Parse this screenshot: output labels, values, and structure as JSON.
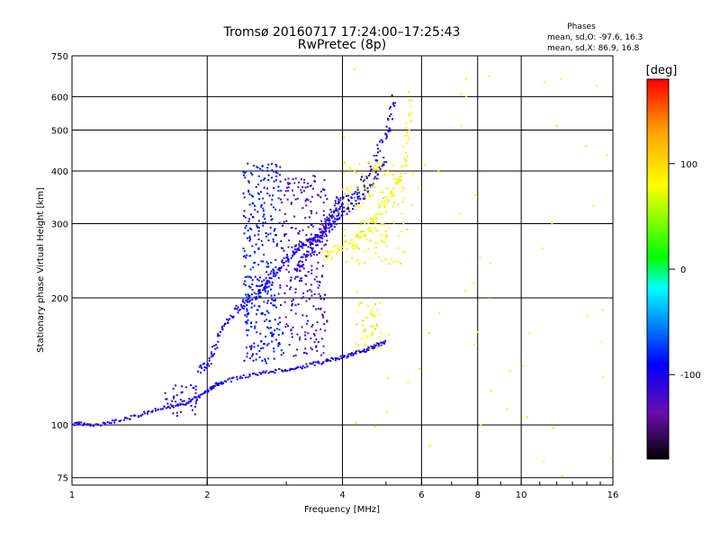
{
  "title": "Tromsø 20160717 17:24:00–17:25:43",
  "subtitle": "RwPretec (8p)",
  "phase_info": {
    "heading": "Phases",
    "line_o": "mean, sd,O: -97.6, 16.3",
    "line_x": "mean, sd,X:  86.9, 16.8"
  },
  "chart_data": {
    "type": "scatter",
    "xlabel": "Frequency [MHz]",
    "ylabel": "Stationary phase Virtual Height [km]",
    "xscale": "log",
    "yscale": "log",
    "xlim": [
      1,
      16
    ],
    "ylim": [
      72,
      750
    ],
    "x_ticks": [
      1,
      2,
      4,
      6,
      8,
      10,
      16
    ],
    "y_ticks": [
      75,
      100,
      200,
      300,
      400,
      500,
      600,
      750
    ],
    "grid": true,
    "colorbar": {
      "label": "[deg]",
      "range": [
        -180,
        180
      ],
      "ticks": [
        100,
        0,
        -100
      ],
      "colors": [
        "#ff0000",
        "#ffa500",
        "#ffff00",
        "#00ff00",
        "#00ffff",
        "#0000ff",
        "#6a0dad",
        "#000000"
      ]
    },
    "series": [
      {
        "kind": "curve",
        "phase": -100,
        "x": [
          1.0,
          1.05,
          1.1,
          1.2,
          1.3,
          1.4,
          1.5,
          1.6,
          1.7,
          1.8,
          1.9,
          2.0,
          2.05,
          2.1,
          2.2,
          2.4,
          2.6,
          2.8,
          3.0,
          3.2,
          3.4,
          3.6,
          3.8,
          4.0,
          4.2,
          4.4,
          4.6,
          4.8,
          5.0
        ],
        "y": [
          100,
          101,
          100,
          101,
          103,
          105,
          108,
          110,
          111,
          113,
          116,
          120,
          123,
          125,
          127,
          130,
          132,
          134,
          135,
          137,
          139,
          141,
          143,
          145,
          147,
          149,
          152,
          155,
          158
        ],
        "jitter": 0.01
      },
      {
        "kind": "curve",
        "phase": -100,
        "x": [
          1.9,
          2.0,
          2.05,
          2.1,
          2.2,
          2.3,
          2.4,
          2.5,
          2.6,
          2.7,
          2.8
        ],
        "y": [
          135,
          138,
          145,
          160,
          175,
          185,
          193,
          198,
          205,
          213,
          220
        ],
        "jitter": 0.02
      },
      {
        "kind": "curve",
        "phase": -100,
        "x": [
          2.6,
          2.7,
          2.8,
          2.9,
          3.0,
          3.1,
          3.2,
          3.3,
          3.4,
          3.5,
          3.6,
          3.7,
          3.8,
          3.9,
          4.0,
          4.2,
          4.4,
          4.6,
          4.8,
          5.0
        ],
        "y": [
          210,
          218,
          227,
          237,
          248,
          256,
          263,
          268,
          272,
          277,
          283,
          290,
          298,
          307,
          317,
          330,
          345,
          365,
          395,
          430
        ],
        "jitter": 0.02
      },
      {
        "kind": "curve",
        "phase": -115,
        "x": [
          3.1,
          3.2,
          3.3,
          3.4,
          3.5,
          3.6,
          3.7,
          3.8,
          3.9,
          4.0
        ],
        "y": [
          225,
          235,
          245,
          258,
          270,
          283,
          300,
          318,
          335,
          352
        ],
        "jitter": 0.03
      },
      {
        "kind": "curve",
        "phase": -100,
        "x": [
          3.6,
          3.8,
          4.0,
          4.2,
          4.4,
          4.6,
          4.8,
          5.0,
          5.1,
          5.2
        ],
        "y": [
          300,
          315,
          333,
          350,
          372,
          400,
          440,
          490,
          540,
          600
        ],
        "jitter": 0.03
      },
      {
        "kind": "curve",
        "phase": 100,
        "x": [
          3.6,
          3.8,
          4.0,
          4.2,
          4.4,
          4.6,
          4.8,
          5.0,
          5.2,
          5.4,
          5.5,
          5.6,
          5.7
        ],
        "y": [
          250,
          256,
          262,
          270,
          282,
          300,
          320,
          340,
          360,
          385,
          420,
          500,
          630
        ],
        "jitter": 0.03
      },
      {
        "kind": "cluster",
        "phase": -85,
        "xmin": 2.4,
        "xmax": 2.95,
        "ymin": 140,
        "ymax": 420,
        "count": 340
      },
      {
        "kind": "cluster",
        "phase": -120,
        "xmin": 2.95,
        "xmax": 3.7,
        "ymin": 145,
        "ymax": 390,
        "count": 260
      },
      {
        "kind": "cluster",
        "phase": 105,
        "xmin": 4.3,
        "xmax": 4.9,
        "ymin": 150,
        "ymax": 195,
        "count": 45
      },
      {
        "kind": "cluster",
        "phase": -100,
        "xmin": 1.6,
        "xmax": 1.9,
        "ymin": 105,
        "ymax": 125,
        "count": 40
      },
      {
        "kind": "cluster",
        "phase": 100,
        "xmin": 4.0,
        "xmax": 5.6,
        "ymin": 240,
        "ymax": 420,
        "count": 160
      },
      {
        "kind": "scatter",
        "phase": 100,
        "xmin": 4.0,
        "xmax": 16.0,
        "ymin": 75,
        "ymax": 700,
        "count": 60
      }
    ]
  }
}
